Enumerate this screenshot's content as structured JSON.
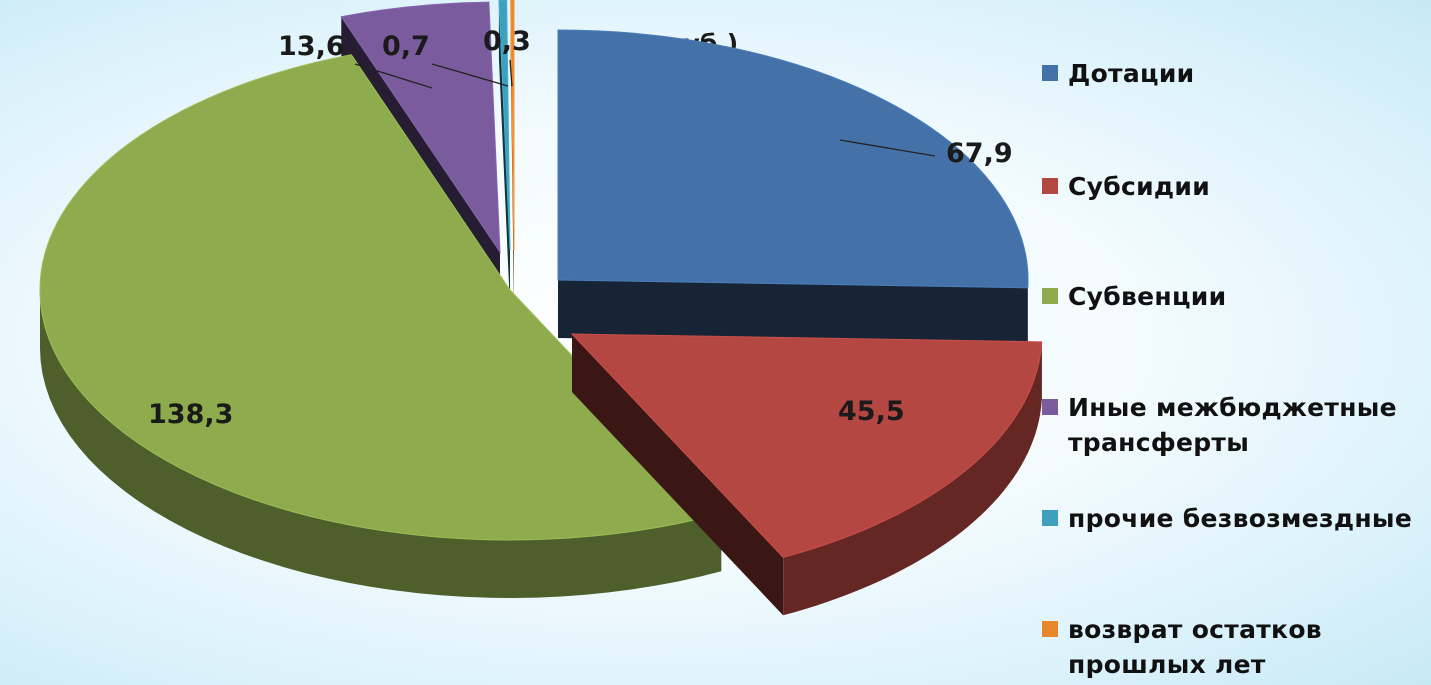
{
  "chart_data": {
    "type": "pie",
    "unit_note": "(млн. руб.)",
    "categories": [
      "Дотации",
      "Субсидии",
      "Субвенции",
      "Иные межбюджетные трансферты",
      "прочие безвозмездные",
      "возврат остатков прошлых лет"
    ],
    "values": [
      67.9,
      45.5,
      138.3,
      13.6,
      0.7,
      0.3
    ],
    "value_labels": [
      "67,9",
      "45,5",
      "138,3",
      "13,6",
      "0,7",
      "0,3"
    ],
    "legend_position": "right"
  },
  "legend": [
    {
      "lines": [
        "Дотации"
      ],
      "color": "#4472a8"
    },
    {
      "lines": [
        "Субсидии"
      ],
      "color": "#b54742"
    },
    {
      "lines": [
        "Субвенции"
      ],
      "color": "#8eac4e"
    },
    {
      "lines": [
        "Иные межбюджетные",
        "трансферты"
      ],
      "color": "#7a5c9e"
    },
    {
      "lines": [
        "прочие безвозмездные"
      ],
      "color": "#3ea0bd"
    },
    {
      "lines": [
        "возврат остатков",
        "прошлых лет"
      ],
      "color": "#e8862c"
    }
  ]
}
